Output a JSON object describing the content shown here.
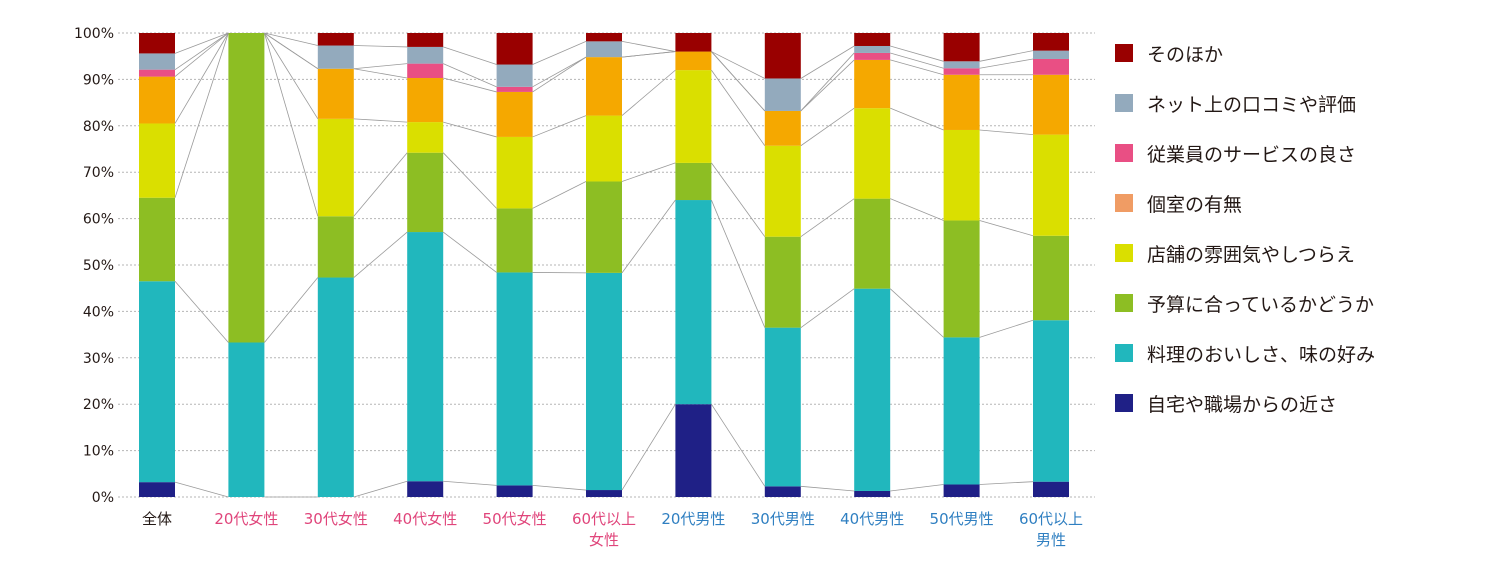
{
  "chart_data": {
    "type": "bar",
    "stacked": true,
    "percent": true,
    "ylim": [
      0,
      100
    ],
    "yticks": [
      0,
      10,
      20,
      30,
      40,
      50,
      60,
      70,
      80,
      90,
      100
    ],
    "ytick_labels": [
      "0%",
      "10%",
      "20%",
      "30%",
      "40%",
      "50%",
      "60%",
      "70%",
      "80%",
      "90%",
      "100%"
    ],
    "grid": true,
    "legend_position": "right",
    "title": "",
    "xlabel": "",
    "ylabel": "",
    "categories": [
      {
        "label": "全体",
        "color": "#231815"
      },
      {
        "label": "20代女性",
        "color": "#e0457b"
      },
      {
        "label": "30代女性",
        "color": "#e0457b"
      },
      {
        "label": "40代女性",
        "color": "#e0457b"
      },
      {
        "label": "50代女性",
        "color": "#e0457b"
      },
      {
        "label": "60代以上\n女性",
        "color": "#e0457b"
      },
      {
        "label": "20代男性",
        "color": "#2f7fc1"
      },
      {
        "label": "30代男性",
        "color": "#2f7fc1"
      },
      {
        "label": "40代男性",
        "color": "#2f7fc1"
      },
      {
        "label": "50代男性",
        "color": "#2f7fc1"
      },
      {
        "label": "60代以上\n男性",
        "color": "#2f7fc1"
      }
    ],
    "series": [
      {
        "name": "自宅や職場からの近さ",
        "color": "#1f2086",
        "values": [
          3.2,
          0,
          0,
          3.4,
          2.5,
          1.5,
          20.0,
          2.3,
          1.3,
          2.7,
          3.3
        ]
      },
      {
        "name": "料理のおいしさ、味の好み",
        "color": "#21b7bd",
        "values": [
          43.3,
          33.3,
          47.3,
          53.7,
          45.9,
          46.8,
          44.0,
          34.2,
          43.6,
          31.7,
          34.8
        ]
      },
      {
        "name": "予算に合っているかどうか",
        "color": "#8dbe23",
        "values": [
          18.0,
          66.7,
          13.2,
          17.1,
          13.8,
          19.7,
          8.0,
          19.6,
          19.4,
          25.2,
          18.2
        ]
      },
      {
        "name": "店舗の雰囲気やしつらえ",
        "color": "#dadf00",
        "values": [
          16.0,
          0,
          21.0,
          6.6,
          15.4,
          14.2,
          20.0,
          19.6,
          19.5,
          19.5,
          21.8
        ]
      },
      {
        "name": "個室の有無",
        "color": "#f09c64",
        "values": [
          0,
          0,
          0,
          0,
          0,
          0,
          0,
          0,
          0,
          0,
          0
        ]
      },
      {
        "name": "従業員のサービスの良さ",
        "color": "#e94f84",
        "values": [
          1.5,
          0,
          0,
          3.1,
          1.1,
          0,
          0,
          0,
          1.5,
          1.4,
          3.4
        ]
      },
      {
        "name": "ネット上の口コミや評価",
        "color": "#93aabd",
        "values": [
          3.5,
          0,
          5.0,
          3.6,
          4.8,
          3.4,
          0,
          7.0,
          1.5,
          1.5,
          1.8
        ]
      },
      {
        "name": "そのほか",
        "color": "#990000",
        "values": [
          4.4,
          0,
          2.7,
          3.0,
          6.8,
          1.8,
          4.0,
          9.8,
          2.8,
          6.1,
          3.8
        ]
      }
    ],
    "orange_overlay": {
      "note": "orange (#f5a800) segments between 店舗の雰囲気 and 従業員のサービス",
      "values": [
        10.1,
        0,
        10.8,
        9.5,
        9.7,
        12.6,
        4.0,
        7.5,
        10.4,
        11.9,
        12.9
      ]
    }
  },
  "legend": {
    "items": [
      {
        "label": "そのほか",
        "color": "#990000"
      },
      {
        "label": "ネット上の口コミや評価",
        "color": "#93aabd"
      },
      {
        "label": "従業員のサービスの良さ",
        "color": "#e94f84"
      },
      {
        "label": "個室の有無",
        "color": "#f09c64"
      },
      {
        "label": "店舗の雰囲気やしつらえ",
        "color": "#dadf00"
      },
      {
        "label": "予算に合っているかどうか",
        "color": "#8dbe23"
      },
      {
        "label": "料理のおいしさ、味の好み",
        "color": "#21b7bd"
      },
      {
        "label": "自宅や職場からの近さ",
        "color": "#1f2086"
      }
    ]
  }
}
